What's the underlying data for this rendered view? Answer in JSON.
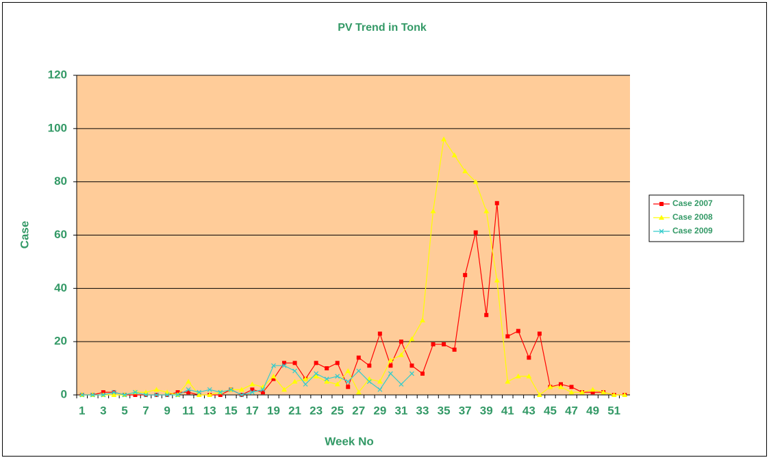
{
  "chart_data": {
    "type": "line",
    "title": "PV Trend in Tonk",
    "xlabel": "Week No",
    "ylabel": "Case",
    "categories": [
      "1",
      null,
      "3",
      null,
      "5",
      null,
      "7",
      null,
      "9",
      null,
      "11",
      null,
      "13",
      null,
      "15",
      null,
      "17",
      null,
      "19",
      null,
      "21",
      null,
      "23",
      null,
      "25",
      null,
      "27",
      null,
      "29",
      null,
      "31",
      null,
      "33",
      null,
      "35",
      null,
      "37",
      null,
      "39",
      null,
      "41",
      null,
      "43",
      null,
      "45",
      null,
      "47",
      null,
      "49",
      null,
      "51",
      null
    ],
    "series": [
      {
        "name": "Case 2007",
        "color": "#ff0000",
        "marker": "square",
        "values": [
          0,
          0,
          1,
          1,
          0,
          0,
          0,
          0,
          0,
          1,
          1,
          0,
          0,
          0,
          2,
          0,
          2,
          1,
          6,
          12,
          12,
          6,
          12,
          10,
          12,
          3,
          14,
          11,
          23,
          11,
          20,
          11,
          8,
          19,
          19,
          17,
          45,
          61,
          30,
          72,
          22,
          24,
          14,
          23,
          3,
          4,
          3,
          1,
          1,
          1,
          0,
          0
        ]
      },
      {
        "name": "Case 2008",
        "color": "#ffff00",
        "marker": "triangle",
        "values": [
          0,
          0,
          0,
          0,
          0,
          1,
          1,
          2,
          1,
          0,
          5,
          0,
          0,
          1,
          2,
          2,
          4,
          3,
          7,
          2,
          5,
          6,
          7,
          5,
          4,
          9,
          1,
          6,
          5,
          13,
          15,
          21,
          28,
          69,
          96,
          90,
          84,
          80,
          69,
          43,
          5,
          7,
          7,
          0,
          3,
          3,
          1,
          1,
          2,
          1,
          0,
          0
        ]
      },
      {
        "name": "Case 2009",
        "color": "#33cccc",
        "marker": "x",
        "values": [
          0,
          0,
          0,
          1,
          0,
          1,
          0,
          0,
          0,
          0,
          2,
          1,
          2,
          1,
          2,
          0,
          1,
          2,
          11,
          11,
          9,
          4,
          8,
          6,
          7,
          5,
          9,
          5,
          2,
          8,
          4,
          8,
          null,
          null,
          null,
          null,
          null,
          null,
          null,
          null,
          null,
          null,
          null,
          null,
          null,
          null,
          null,
          null,
          null,
          null,
          null,
          null
        ]
      }
    ],
    "ylim": [
      0,
      120
    ],
    "yticks": [
      0,
      20,
      40,
      60,
      80,
      100,
      120
    ],
    "grid": true,
    "legend": "right",
    "plot_background": "#ffcc99",
    "text_color": "#339966"
  }
}
